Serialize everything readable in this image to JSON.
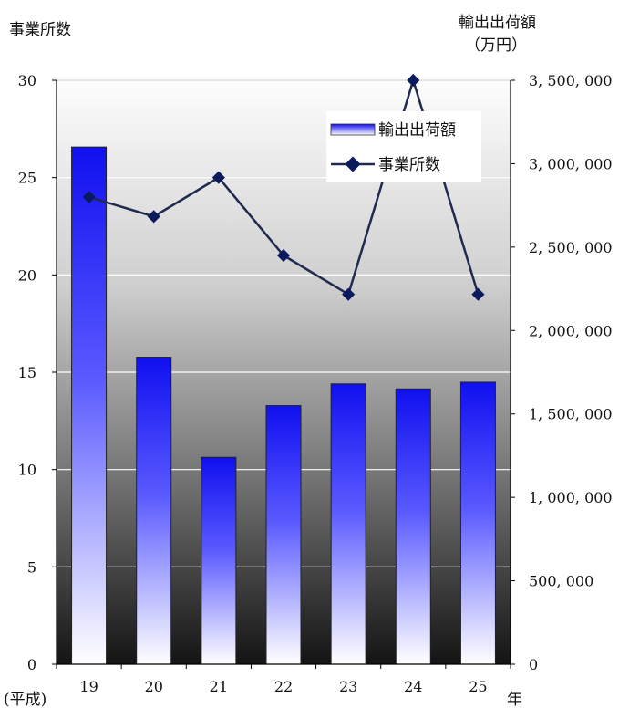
{
  "chart_data": {
    "type": "bar",
    "left_axis_title": "事業所数",
    "right_axis_title_1": "輸出出荷額",
    "right_axis_title_2": "（万円）",
    "x_prefix": "(平成)",
    "x_suffix": "年",
    "categories": [
      "19",
      "20",
      "21",
      "22",
      "23",
      "24",
      "25"
    ],
    "left_ylim": [
      0,
      30
    ],
    "left_ticks": [
      "0",
      "5",
      "10",
      "15",
      "20",
      "25",
      "30"
    ],
    "right_ylim": [
      0,
      3500000
    ],
    "right_ticks": [
      "0",
      "500, 000",
      "1, 000, 000",
      "1, 500, 000",
      "2, 000, 000",
      "2, 500, 000",
      "3, 000, 000",
      "3, 500, 000"
    ],
    "series": [
      {
        "name": "輸出出荷額",
        "axis": "right",
        "kind": "bar",
        "values": [
          3100000,
          1840000,
          1240000,
          1550000,
          1680000,
          1650000,
          1690000
        ]
      },
      {
        "name": "事業所数",
        "axis": "left",
        "kind": "line",
        "values": [
          24,
          23,
          25,
          21,
          19,
          30,
          19
        ]
      }
    ],
    "legend": "top-right",
    "grid": true
  },
  "colors": {
    "bar_top": "#1010f0",
    "bar_bottom": "#ffffff",
    "line": "#1f2a4e",
    "marker": "#0b1a5c"
  }
}
